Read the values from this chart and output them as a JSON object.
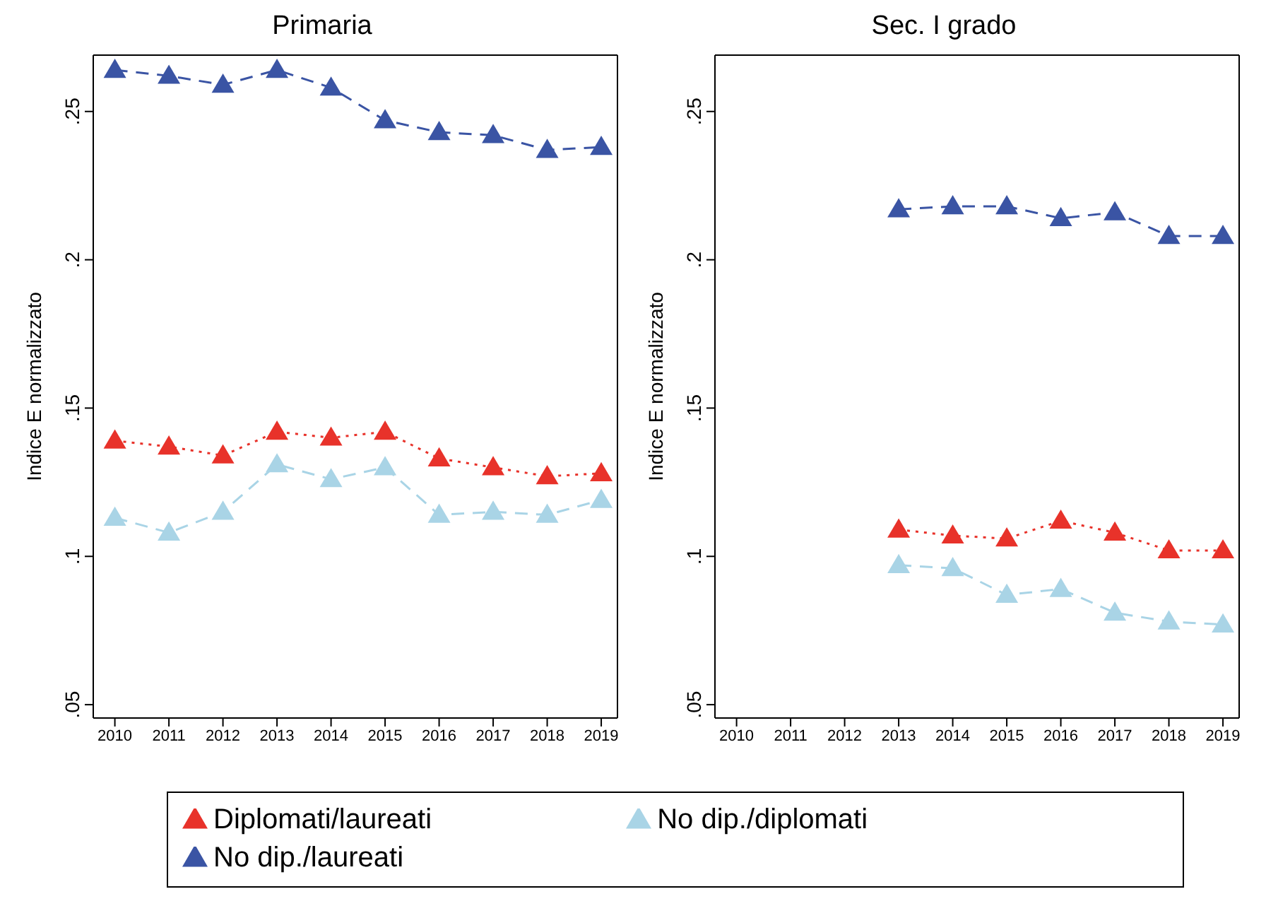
{
  "chart_data": [
    {
      "type": "line",
      "title": "Primaria",
      "ylabel": "Indice E normalizzato",
      "x": [
        2010,
        2011,
        2012,
        2013,
        2014,
        2015,
        2016,
        2017,
        2018,
        2019
      ],
      "xlim": [
        2009.6,
        2019.3
      ],
      "xticks": [
        2010,
        2011,
        2012,
        2013,
        2014,
        2015,
        2016,
        2017,
        2018,
        2019
      ],
      "ylim": [
        0.0455,
        0.269
      ],
      "yticks": [
        {
          "value": 0.05,
          "label": ".05"
        },
        {
          "value": 0.1,
          "label": ".1"
        },
        {
          "value": 0.15,
          "label": ".15"
        },
        {
          "value": 0.2,
          "label": ".2"
        },
        {
          "value": 0.25,
          "label": ".25"
        }
      ],
      "grid": false,
      "legend": "bottom",
      "marker": "triangle",
      "series": [
        {
          "name": "No dip./laureati",
          "color": "#3a54a4",
          "line_style": "dashed",
          "values": [
            0.264,
            0.262,
            0.259,
            0.264,
            0.258,
            0.247,
            0.243,
            0.242,
            0.237,
            0.238
          ]
        },
        {
          "name": "No dip./diplomati",
          "color": "#a9d4e6",
          "line_style": "dashed",
          "values": [
            0.113,
            0.108,
            0.115,
            0.131,
            0.126,
            0.13,
            0.114,
            0.115,
            0.114,
            0.119
          ]
        },
        {
          "name": "Diplomati/laureati",
          "color": "#e8322a",
          "line_style": "dotted",
          "values": [
            0.139,
            0.137,
            0.134,
            0.142,
            0.14,
            0.142,
            0.133,
            0.13,
            0.127,
            0.128
          ]
        }
      ]
    },
    {
      "type": "line",
      "title": "Sec. I grado",
      "ylabel": "Indice E normalizzato",
      "x": [
        2013,
        2014,
        2015,
        2016,
        2017,
        2018,
        2019
      ],
      "xlim": [
        2009.6,
        2019.3
      ],
      "xticks": [
        2010,
        2011,
        2012,
        2013,
        2014,
        2015,
        2016,
        2017,
        2018,
        2019
      ],
      "ylim": [
        0.0455,
        0.269
      ],
      "yticks": [
        {
          "value": 0.05,
          "label": ".05"
        },
        {
          "value": 0.1,
          "label": ".1"
        },
        {
          "value": 0.15,
          "label": ".15"
        },
        {
          "value": 0.2,
          "label": ".2"
        },
        {
          "value": 0.25,
          "label": ".25"
        }
      ],
      "grid": false,
      "marker": "triangle",
      "series": [
        {
          "color": "#3a54a4",
          "line_style": "dashed",
          "values": [
            0.217,
            0.218,
            0.218,
            0.214,
            0.216,
            0.208,
            0.208
          ]
        },
        {
          "color": "#a9d4e6",
          "line_style": "dashed",
          "values": [
            0.097,
            0.096,
            0.087,
            0.089,
            0.081,
            0.078,
            0.077
          ]
        },
        {
          "color": "#e8322a",
          "line_style": "dotted",
          "values": [
            0.109,
            0.107,
            0.106,
            0.112,
            0.108,
            0.102,
            0.102
          ]
        }
      ]
    }
  ]
}
